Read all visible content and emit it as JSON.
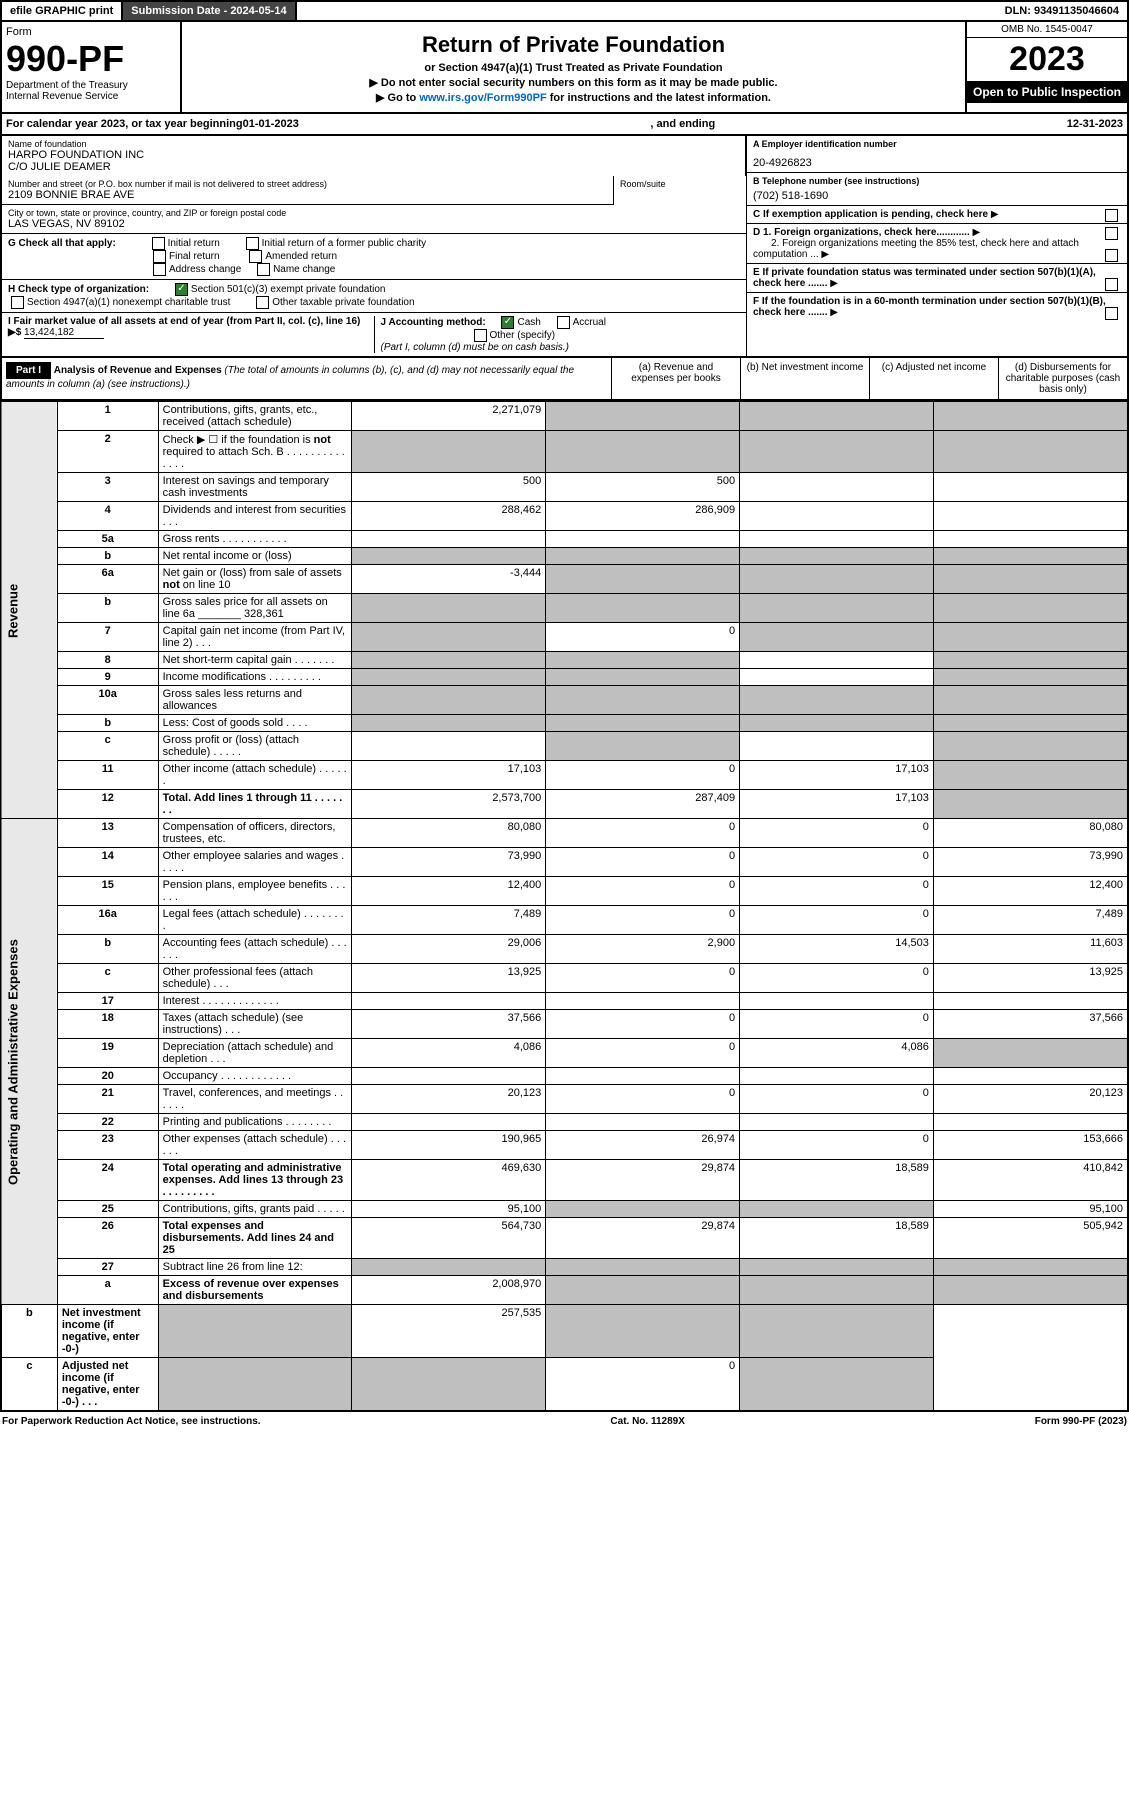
{
  "topbar": {
    "efile": "efile GRAPHIC print",
    "submission": "Submission Date - 2024-05-14",
    "dln": "DLN: 93491135046604"
  },
  "header": {
    "form_label": "Form",
    "form_num": "990-PF",
    "dept": "Department of the Treasury\nInternal Revenue Service",
    "title": "Return of Private Foundation",
    "subtitle": "or Section 4947(a)(1) Trust Treated as Private Foundation",
    "note1": "▶ Do not enter social security numbers on this form as it may be made public.",
    "note2_pre": "▶ Go to ",
    "note2_link": "www.irs.gov/Form990PF",
    "note2_post": " for instructions and the latest information.",
    "omb": "OMB No. 1545-0047",
    "year": "2023",
    "open": "Open to Public Inspection"
  },
  "calyear": {
    "pre": "For calendar year 2023, or tax year beginning ",
    "begin": "01-01-2023",
    "mid": " , and ending ",
    "end": "12-31-2023"
  },
  "info": {
    "name_lbl": "Name of foundation",
    "name": "HARPO FOUNDATION INC\nC/O JULIE DEAMER",
    "addr_lbl": "Number and street (or P.O. box number if mail is not delivered to street address)",
    "addr": "2109 BONNIE BRAE AVE",
    "room_lbl": "Room/suite",
    "city_lbl": "City or town, state or province, country, and ZIP or foreign postal code",
    "city": "LAS VEGAS, NV  89102",
    "a_lbl": "A Employer identification number",
    "a_val": "20-4926823",
    "b_lbl": "B Telephone number (see instructions)",
    "b_val": "(702) 518-1690",
    "c_lbl": "C If exemption application is pending, check here",
    "d1_lbl": "D 1. Foreign organizations, check here............",
    "d2_lbl": "2. Foreign organizations meeting the 85% test, check here and attach computation ...",
    "e_lbl": "E  If private foundation status was terminated under section 507(b)(1)(A), check here .......",
    "f_lbl": "F  If the foundation is in a 60-month termination under section 507(b)(1)(B), check here .......",
    "g_lbl": "G Check all that apply:",
    "g_opts": [
      "Initial return",
      "Initial return of a former public charity",
      "Final return",
      "Amended return",
      "Address change",
      "Name change"
    ],
    "h_lbl": "H Check type of organization:",
    "h_opt1": "Section 501(c)(3) exempt private foundation",
    "h_opt2": "Section 4947(a)(1) nonexempt charitable trust",
    "h_opt3": "Other taxable private foundation",
    "i_lbl": "I Fair market value of all assets at end of year (from Part II, col. (c), line 16) ▶$",
    "i_val": "13,424,182",
    "j_lbl": "J Accounting method:",
    "j_cash": "Cash",
    "j_acc": "Accrual",
    "j_other": "Other (specify)",
    "j_note": "(Part I, column (d) must be on cash basis.)"
  },
  "parti": {
    "label": "Part I",
    "title": "Analysis of Revenue and Expenses",
    "note": "(The total of amounts in columns (b), (c), and (d) may not necessarily equal the amounts in column (a) (see instructions).)",
    "col_a": "(a) Revenue and expenses per books",
    "col_b": "(b) Net investment income",
    "col_c": "(c) Adjusted net income",
    "col_d": "(d) Disbursements for charitable purposes (cash basis only)"
  },
  "side": {
    "rev": "Revenue",
    "exp": "Operating and Administrative Expenses"
  },
  "rows": [
    {
      "n": "1",
      "d": "Contributions, gifts, grants, etc., received (attach schedule)",
      "a": "2,271,079",
      "bg": [
        "",
        "g",
        "g",
        "g"
      ]
    },
    {
      "n": "2",
      "d": "Check ▶ ☐ if the foundation is not required to attach Sch. B  .   .   .   .   .   .   .   .   .   .   .   .   .   .",
      "bg": [
        "g",
        "g",
        "g",
        "g"
      ]
    },
    {
      "n": "3",
      "d": "Interest on savings and temporary cash investments",
      "a": "500",
      "b": "500"
    },
    {
      "n": "4",
      "d": "Dividends and interest from securities   .   .   .",
      "a": "288,462",
      "b": "286,909"
    },
    {
      "n": "5a",
      "d": "Gross rents   .   .   .   .   .   .   .   .   .   .   ."
    },
    {
      "n": "b",
      "d": "Net rental income or (loss)",
      "bg": [
        "g",
        "g",
        "g",
        "g"
      ],
      "inline": true
    },
    {
      "n": "6a",
      "d": "Net gain or (loss) from sale of assets not on line 10",
      "a": "-3,444",
      "bg": [
        "",
        "g",
        "g",
        "g"
      ]
    },
    {
      "n": "b",
      "d": "Gross sales price for all assets on line 6a _______ 328,361",
      "bg": [
        "g",
        "g",
        "g",
        "g"
      ]
    },
    {
      "n": "7",
      "d": "Capital gain net income (from Part IV, line 2)   .   .   .",
      "b": "0",
      "bg": [
        "g",
        "",
        "g",
        "g"
      ]
    },
    {
      "n": "8",
      "d": "Net short-term capital gain  .   .   .   .   .   .   .",
      "bg": [
        "g",
        "g",
        "",
        "g"
      ]
    },
    {
      "n": "9",
      "d": "Income modifications  .   .   .   .   .   .   .   .   .",
      "bg": [
        "g",
        "g",
        "",
        "g"
      ]
    },
    {
      "n": "10a",
      "d": "Gross sales less returns and allowances",
      "bg": [
        "g",
        "g",
        "g",
        "g"
      ],
      "inline": true
    },
    {
      "n": "b",
      "d": "Less: Cost of goods sold   .   .   .   .",
      "bg": [
        "g",
        "g",
        "g",
        "g"
      ],
      "inline": true
    },
    {
      "n": "c",
      "d": "Gross profit or (loss) (attach schedule)   .   .   .   .   .",
      "bg": [
        "",
        "g",
        "",
        "g"
      ]
    },
    {
      "n": "11",
      "d": "Other income (attach schedule)   .   .   .   .   .   .",
      "a": "17,103",
      "b": "0",
      "c": "17,103",
      "bg": [
        "",
        "",
        "",
        "g"
      ]
    },
    {
      "n": "12",
      "d": "Total. Add lines 1 through 11   .   .   .   .   .   .   .",
      "a": "2,573,700",
      "b": "287,409",
      "c": "17,103",
      "bold": true,
      "bg": [
        "",
        "",
        "",
        "g"
      ]
    },
    {
      "n": "13",
      "d": "Compensation of officers, directors, trustees, etc.",
      "a": "80,080",
      "b": "0",
      "c": "0",
      "dd": "80,080"
    },
    {
      "n": "14",
      "d": "Other employee salaries and wages   .   .   .   .   .",
      "a": "73,990",
      "b": "0",
      "c": "0",
      "dd": "73,990"
    },
    {
      "n": "15",
      "d": "Pension plans, employee benefits  .   .   .   .   .   .",
      "a": "12,400",
      "b": "0",
      "c": "0",
      "dd": "12,400"
    },
    {
      "n": "16a",
      "d": "Legal fees (attach schedule)  .   .   .   .   .   .   .   .",
      "a": "7,489",
      "b": "0",
      "c": "0",
      "dd": "7,489"
    },
    {
      "n": "b",
      "d": "Accounting fees (attach schedule)  .   .   .   .   .   .",
      "a": "29,006",
      "b": "2,900",
      "c": "14,503",
      "dd": "11,603"
    },
    {
      "n": "c",
      "d": "Other professional fees (attach schedule)   .   .   .",
      "a": "13,925",
      "b": "0",
      "c": "0",
      "dd": "13,925"
    },
    {
      "n": "17",
      "d": "Interest  .   .   .   .   .   .   .   .   .   .   .   .   ."
    },
    {
      "n": "18",
      "d": "Taxes (attach schedule) (see instructions)   .   .   .",
      "a": "37,566",
      "b": "0",
      "c": "0",
      "dd": "37,566"
    },
    {
      "n": "19",
      "d": "Depreciation (attach schedule) and depletion   .   .   .",
      "a": "4,086",
      "b": "0",
      "c": "4,086",
      "bg": [
        "",
        "",
        "",
        "g"
      ]
    },
    {
      "n": "20",
      "d": "Occupancy  .   .   .   .   .   .   .   .   .   .   .   ."
    },
    {
      "n": "21",
      "d": "Travel, conferences, and meetings  .   .   .   .   .   .",
      "a": "20,123",
      "b": "0",
      "c": "0",
      "dd": "20,123"
    },
    {
      "n": "22",
      "d": "Printing and publications  .   .   .   .   .   .   .   ."
    },
    {
      "n": "23",
      "d": "Other expenses (attach schedule)  .   .   .   .   .   .",
      "a": "190,965",
      "b": "26,974",
      "c": "0",
      "dd": "153,666"
    },
    {
      "n": "24",
      "d": "Total operating and administrative expenses. Add lines 13 through 23   .   .   .   .   .   .   .   .   .",
      "a": "469,630",
      "b": "29,874",
      "c": "18,589",
      "dd": "410,842",
      "bold": true
    },
    {
      "n": "25",
      "d": "Contributions, gifts, grants paid   .   .   .   .   .",
      "a": "95,100",
      "dd": "95,100",
      "bg": [
        "",
        "g",
        "g",
        ""
      ]
    },
    {
      "n": "26",
      "d": "Total expenses and disbursements. Add lines 24 and 25",
      "a": "564,730",
      "b": "29,874",
      "c": "18,589",
      "dd": "505,942",
      "bold": true
    },
    {
      "n": "27",
      "d": "Subtract line 26 from line 12:",
      "bg": [
        "g",
        "g",
        "g",
        "g"
      ]
    },
    {
      "n": "a",
      "d": "Excess of revenue over expenses and disbursements",
      "a": "2,008,970",
      "bold": true,
      "bg": [
        "",
        "g",
        "g",
        "g"
      ]
    },
    {
      "n": "b",
      "d": "Net investment income (if negative, enter -0-)",
      "b": "257,535",
      "bold": true,
      "bg": [
        "g",
        "",
        "g",
        "g"
      ]
    },
    {
      "n": "c",
      "d": "Adjusted net income (if negative, enter -0-)   .   .   .",
      "c": "0",
      "bold": true,
      "bg": [
        "g",
        "g",
        "",
        "g"
      ]
    }
  ],
  "footer": {
    "left": "For Paperwork Reduction Act Notice, see instructions.",
    "mid": "Cat. No. 11289X",
    "right": "Form 990-PF (2023)"
  }
}
